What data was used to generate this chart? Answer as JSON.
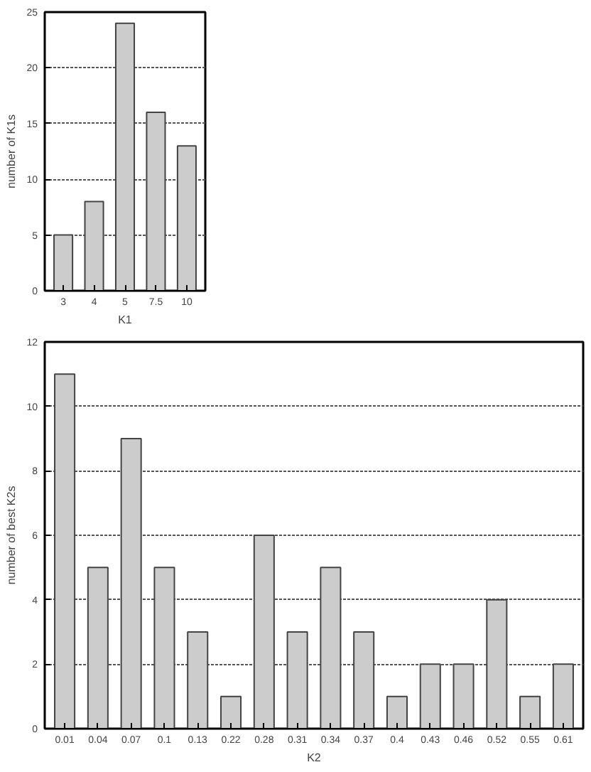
{
  "chart_data": [
    {
      "type": "bar",
      "xlabel": "K1",
      "ylabel": "number of K1s",
      "categories": [
        "3",
        "4",
        "5",
        "7.5",
        "10"
      ],
      "values": [
        5,
        8,
        24,
        16,
        13
      ],
      "color": "#cccccc",
      "ylim": [
        0,
        25
      ],
      "yticks": [
        0,
        5,
        10,
        15,
        20,
        25
      ],
      "grid": "y"
    },
    {
      "type": "bar",
      "xlabel": "K2",
      "ylabel": "number of best K2s",
      "categories": [
        "0.01",
        "0.04",
        "0.07",
        "0.1",
        "0.13",
        "0.22",
        "0.28",
        "0.31",
        "0.34",
        "0.37",
        "0.4",
        "0.43",
        "0.46",
        "0.52",
        "0.55",
        "0.61"
      ],
      "values": [
        11,
        5,
        9,
        5,
        3,
        1,
        6,
        3,
        5,
        3,
        1,
        2,
        2,
        4,
        1,
        2
      ],
      "color": "#cccccc",
      "ylim": [
        0,
        12
      ],
      "yticks": [
        0,
        2,
        4,
        6,
        8,
        10,
        12
      ],
      "grid": "y"
    }
  ]
}
